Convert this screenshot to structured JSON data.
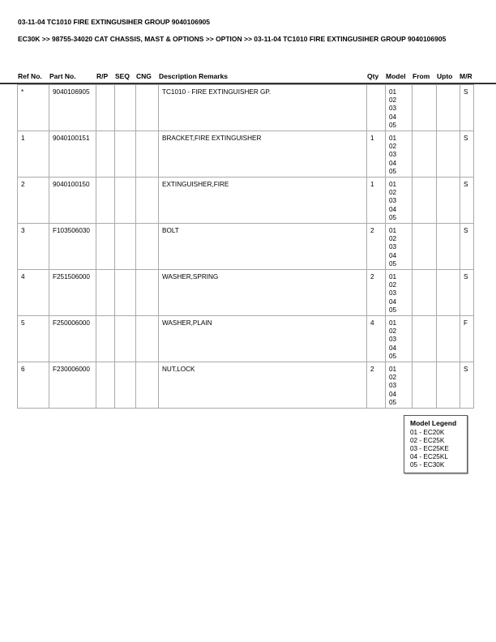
{
  "title": "03-11-04 TC1010 FIRE EXTINGUSIHER GROUP 9040106905",
  "breadcrumb": "EC30K >> 98755-34020 CAT CHASSIS, MAST & OPTIONS >> OPTION >> 03-11-04 TC1010 FIRE EXTINGUSIHER GROUP 9040106905",
  "columns": [
    "Ref No.",
    "Part No.",
    "R/P",
    "SEQ",
    "CNG",
    "Description Remarks",
    "Qty",
    "Model",
    "From",
    "Upto",
    "M/R"
  ],
  "rows": [
    {
      "ref": "*",
      "part": "9040106905",
      "rp": "",
      "seq": "",
      "cng": "",
      "desc": "TC1010 - FIRE EXTINGUISHER GP.",
      "qty": "",
      "models": [
        "01",
        "02",
        "03",
        "04",
        "05"
      ],
      "from": "",
      "upto": "",
      "mr": "S"
    },
    {
      "ref": "1",
      "part": "9040100151",
      "rp": "",
      "seq": "",
      "cng": "",
      "desc": "BRACKET,FIRE EXTINGUISHER",
      "qty": "1",
      "models": [
        "01",
        "02",
        "03",
        "04",
        "05"
      ],
      "from": "",
      "upto": "",
      "mr": "S"
    },
    {
      "ref": "2",
      "part": "9040100150",
      "rp": "",
      "seq": "",
      "cng": "",
      "desc": "EXTINGUISHER,FIRE",
      "qty": "1",
      "models": [
        "01",
        "02",
        "03",
        "04",
        "05"
      ],
      "from": "",
      "upto": "",
      "mr": "S"
    },
    {
      "ref": "3",
      "part": "F103506030",
      "rp": "",
      "seq": "",
      "cng": "",
      "desc": "BOLT",
      "qty": "2",
      "models": [
        "01",
        "02",
        "03",
        "04",
        "05"
      ],
      "from": "",
      "upto": "",
      "mr": "S"
    },
    {
      "ref": "4",
      "part": "F251506000",
      "rp": "",
      "seq": "",
      "cng": "",
      "desc": "WASHER,SPRING",
      "qty": "2",
      "models": [
        "01",
        "02",
        "03",
        "04",
        "05"
      ],
      "from": "",
      "upto": "",
      "mr": "S"
    },
    {
      "ref": "5",
      "part": "F250006000",
      "rp": "",
      "seq": "",
      "cng": "",
      "desc": "WASHER,PLAIN",
      "qty": "4",
      "models": [
        "01",
        "02",
        "03",
        "04",
        "05"
      ],
      "from": "",
      "upto": "",
      "mr": "F"
    },
    {
      "ref": "6",
      "part": "F230006000",
      "rp": "",
      "seq": "",
      "cng": "",
      "desc": "NUT,LOCK",
      "qty": "2",
      "models": [
        "01",
        "02",
        "03",
        "04",
        "05"
      ],
      "from": "",
      "upto": "",
      "mr": "S"
    }
  ],
  "legend": {
    "title": "Model Legend",
    "items": [
      "01 - EC20K",
      "02 - EC25K",
      "03 - EC25KE",
      "04 - EC25KL",
      "05 - EC30K"
    ]
  }
}
